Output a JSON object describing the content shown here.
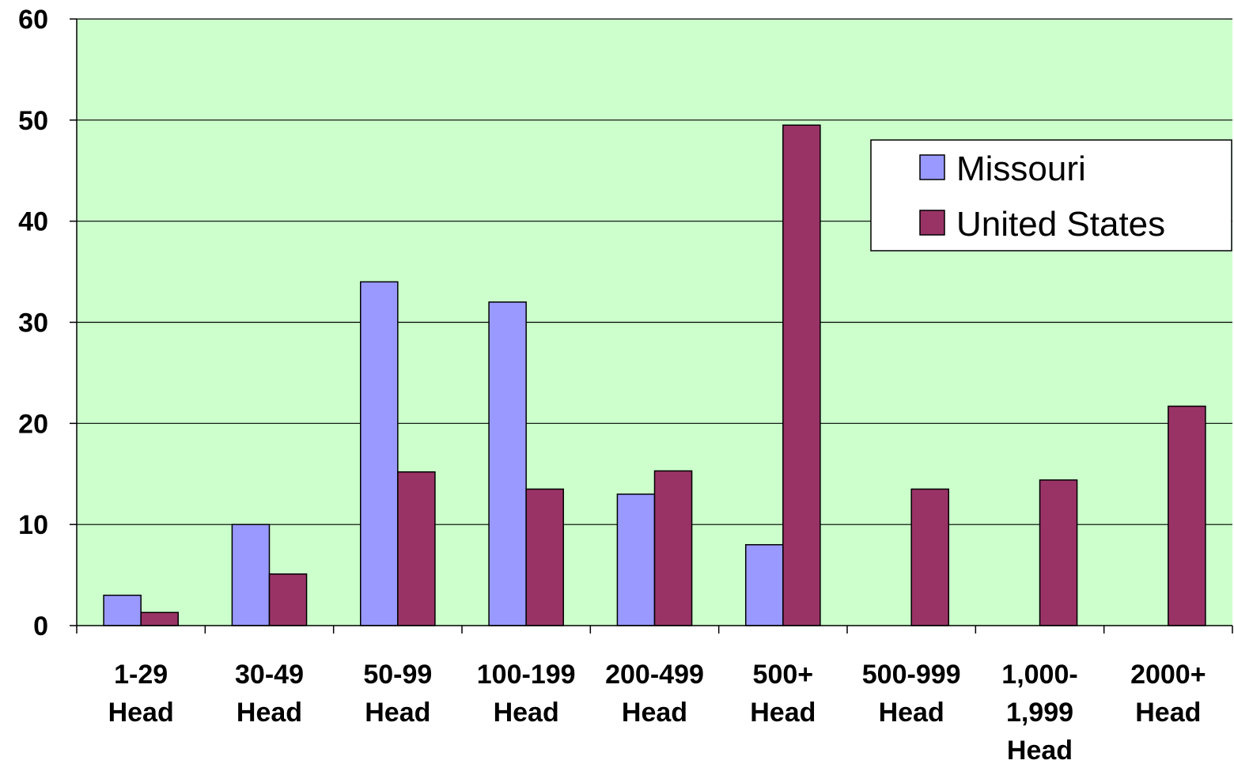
{
  "chart_data": {
    "type": "bar",
    "categories": [
      [
        "1-29",
        "Head"
      ],
      [
        "30-49",
        "Head"
      ],
      [
        "50-99",
        "Head"
      ],
      [
        "100-199",
        "Head"
      ],
      [
        "200-499",
        "Head"
      ],
      [
        "500+",
        "Head"
      ],
      [
        "500-999",
        "Head"
      ],
      [
        "1,000-",
        "1,999",
        "Head"
      ],
      [
        "2000+",
        "Head"
      ]
    ],
    "series": [
      {
        "name": "Missouri",
        "color": "#9999ff",
        "values": [
          3,
          10,
          34,
          32,
          13,
          8,
          null,
          null,
          null
        ]
      },
      {
        "name": "United States",
        "color": "#993366",
        "values": [
          1.3,
          5.1,
          15.2,
          13.5,
          15.3,
          49.5,
          13.5,
          14.4,
          21.7
        ]
      }
    ],
    "title": "",
    "xlabel": "",
    "ylabel": "",
    "ylim": [
      0,
      60
    ],
    "yticks": [
      "0",
      "10",
      "20",
      "30",
      "40",
      "50",
      "60"
    ],
    "grid": true,
    "legend_position": "top-right",
    "plot_background": "#ccffcc"
  }
}
